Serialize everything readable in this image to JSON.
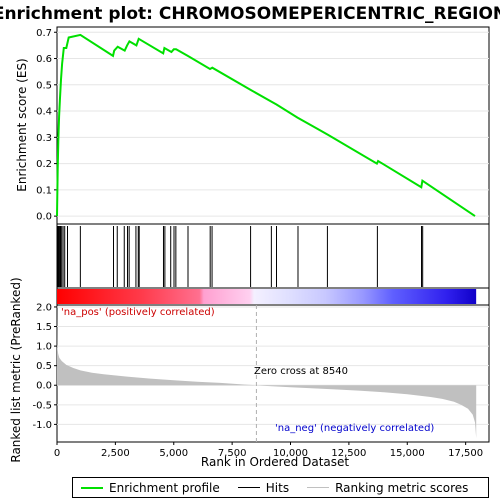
{
  "chart_data": {
    "type": "line",
    "title": "Enrichment plot: CHROMOSOMEPERICENTRIC_REGION",
    "top_panel": {
      "ylabel": "Enrichment score (ES)",
      "ylim": [
        -0.03,
        0.72
      ],
      "yticks": [
        "0.0",
        "0.1",
        "0.2",
        "0.3",
        "0.4",
        "0.5",
        "0.6",
        "0.7"
      ],
      "series": [
        {
          "name": "Enrichment profile",
          "color": "#00e000",
          "x": [
            0,
            30,
            60,
            90,
            130,
            170,
            220,
            290,
            400,
            500,
            1000,
            2400,
            2450,
            2600,
            2900,
            3000,
            3100,
            3400,
            3500,
            4550,
            4600,
            4900,
            5000,
            5100,
            5600,
            6550,
            6650,
            8300,
            9200,
            9400,
            10300,
            11600,
            13700,
            13750,
            15600,
            15650,
            17900
          ],
          "y": [
            0.0,
            0.18,
            0.3,
            0.38,
            0.45,
            0.52,
            0.58,
            0.64,
            0.64,
            0.68,
            0.69,
            0.61,
            0.63,
            0.645,
            0.63,
            0.65,
            0.665,
            0.65,
            0.675,
            0.62,
            0.64,
            0.625,
            0.635,
            0.635,
            0.61,
            0.56,
            0.565,
            0.48,
            0.435,
            0.425,
            0.375,
            0.31,
            0.2,
            0.21,
            0.11,
            0.135,
            0.0
          ]
        }
      ]
    },
    "hits": [
      10,
      40,
      70,
      110,
      150,
      200,
      260,
      330,
      450,
      1000,
      2420,
      2580,
      2880,
      3020,
      3090,
      3380,
      3480,
      3520,
      4560,
      4620,
      4870,
      5010,
      5090,
      5610,
      6560,
      6640,
      8290,
      9180,
      9400,
      10320,
      11580,
      13720,
      15610,
      15660
    ],
    "color_bar": {
      "positive_label": "'na_pos' (positively correlated)",
      "negative_label": "'na_neg' (negatively correlated)",
      "positive_color": "#ff0000",
      "negative_color": "#0000ff"
    },
    "bottom_panel": {
      "ylabel": "Ranked list metric (PreRanked)",
      "xlabel": "Rank in Ordered Dataset",
      "ylim": [
        -1.45,
        2.05
      ],
      "yticks": [
        "-1.0",
        "-0.5",
        "0.0",
        "0.5",
        "1.0",
        "1.5",
        "2.0"
      ],
      "xlim": [
        0,
        18500
      ],
      "xticks": [
        "0",
        "2,500",
        "5,000",
        "7,500",
        "10,000",
        "12,500",
        "15,000",
        "17,500"
      ],
      "zero_cross_label": "Zero cross at 8540",
      "zero_cross": 8540,
      "metric_x": [
        0,
        10,
        50,
        100,
        200,
        400,
        700,
        1000,
        1500,
        2000,
        3000,
        4000,
        5000,
        6000,
        7000,
        8000,
        8540,
        9000,
        10000,
        11000,
        12000,
        13000,
        14000,
        15000,
        16000,
        16500,
        17000,
        17300,
        17600,
        17800,
        17900,
        17950
      ],
      "metric_y": [
        2.0,
        1.0,
        0.8,
        0.7,
        0.62,
        0.52,
        0.44,
        0.38,
        0.32,
        0.28,
        0.22,
        0.17,
        0.13,
        0.09,
        0.06,
        0.02,
        0.0,
        -0.02,
        -0.05,
        -0.08,
        -0.11,
        -0.14,
        -0.18,
        -0.23,
        -0.3,
        -0.35,
        -0.42,
        -0.5,
        -0.6,
        -0.75,
        -0.95,
        -1.35
      ],
      "metric_color": "#c0c0c0"
    },
    "legend": {
      "position": "bottom",
      "items": [
        "Enrichment profile",
        "Hits",
        "Ranking metric scores"
      ]
    }
  }
}
